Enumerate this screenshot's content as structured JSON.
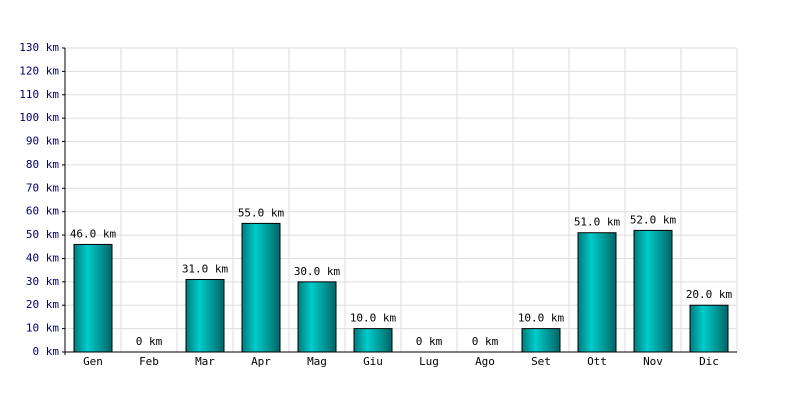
{
  "chart_data": {
    "type": "bar",
    "categories": [
      "Gen",
      "Feb",
      "Mar",
      "Apr",
      "Mag",
      "Giu",
      "Lug",
      "Ago",
      "Set",
      "Ott",
      "Nov",
      "Dic"
    ],
    "values": [
      46,
      0,
      31,
      55,
      30,
      10,
      0,
      0,
      10,
      51,
      52,
      20
    ],
    "value_labels": [
      "46.0 km",
      "0 km",
      "31.0 km",
      "55.0 km",
      "30.0 km",
      "10.0 km",
      "0 km",
      "0 km",
      "10.0 km",
      "51.0 km",
      "52.0 km",
      "20.0 km"
    ],
    "color": "#00cccc",
    "ylim": [
      0,
      130
    ],
    "yticks": [
      {
        "value": 0,
        "label": "0 km"
      },
      {
        "value": 10,
        "label": "10 km"
      },
      {
        "value": 20,
        "label": "20 km"
      },
      {
        "value": 30,
        "label": "30 km"
      },
      {
        "value": 40,
        "label": "40 km"
      },
      {
        "value": 50,
        "label": "50 km"
      },
      {
        "value": 60,
        "label": "60 km"
      },
      {
        "value": 70,
        "label": "70 km"
      },
      {
        "value": 80,
        "label": "80 km"
      },
      {
        "value": 90,
        "label": "90 km"
      },
      {
        "value": 100,
        "label": "100 km"
      },
      {
        "value": 110,
        "label": "110 km"
      },
      {
        "value": 120,
        "label": "120 km"
      },
      {
        "value": 130,
        "label": "130 km"
      }
    ],
    "grid": true
  }
}
